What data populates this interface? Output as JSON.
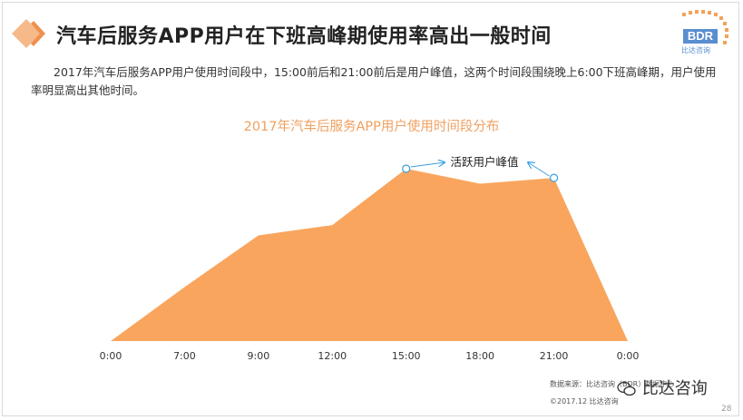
{
  "title": "汽车后服务APP用户在下班高峰期使用率高出一般时间",
  "description": "2017年汽车后服务APP用户使用时间段中，15:00前后和21:00前后是用户峰值，这两个时间段围绕晚上6:00下班高峰期，用户使用率明显高出其他时间。",
  "logo": {
    "text": "BDR",
    "sub": "比达咨询"
  },
  "chart_data": {
    "type": "area",
    "title": "2017年汽车后服务APP用户使用时间段分布",
    "x": [
      "0:00",
      "7:00",
      "9:00",
      "12:00",
      "15:00",
      "18:00",
      "21:00",
      "0:00"
    ],
    "values": [
      0,
      47,
      92,
      101,
      150,
      137,
      142,
      0
    ],
    "annotation": "活跃用户峰值",
    "peaks": [
      4,
      6
    ],
    "ylim": [
      0,
      150
    ],
    "grid": false,
    "area_color": "#f9a55e",
    "axis_label_color": "#333333"
  },
  "footer": {
    "source": "数据来源：比达咨询（BDR）数据中心",
    "copyright": "©2017.12 比达咨询"
  },
  "watermark": "比达咨询",
  "page_number": "28"
}
